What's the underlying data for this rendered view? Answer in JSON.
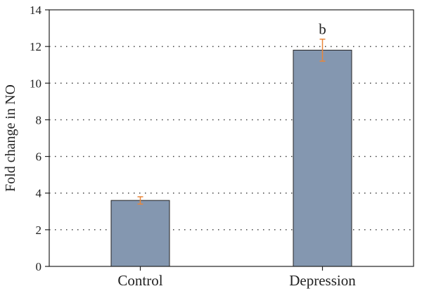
{
  "chart_data": {
    "type": "bar",
    "ylabel": "Fold change in NO",
    "xlabel": "",
    "ylim": [
      0,
      14
    ],
    "yticks": [
      0,
      2,
      4,
      6,
      8,
      10,
      12,
      14
    ],
    "grid": "horizontal-dotted",
    "categories": [
      "Control",
      "Depression"
    ],
    "values": [
      3.6,
      11.8
    ],
    "errors": [
      0.2,
      0.6
    ],
    "annotations": [
      "",
      "b"
    ],
    "colors": {
      "bar": "#8497b0",
      "bar_edge": "#222222",
      "error_bar": "#e8863a",
      "grid": "#333333"
    }
  }
}
